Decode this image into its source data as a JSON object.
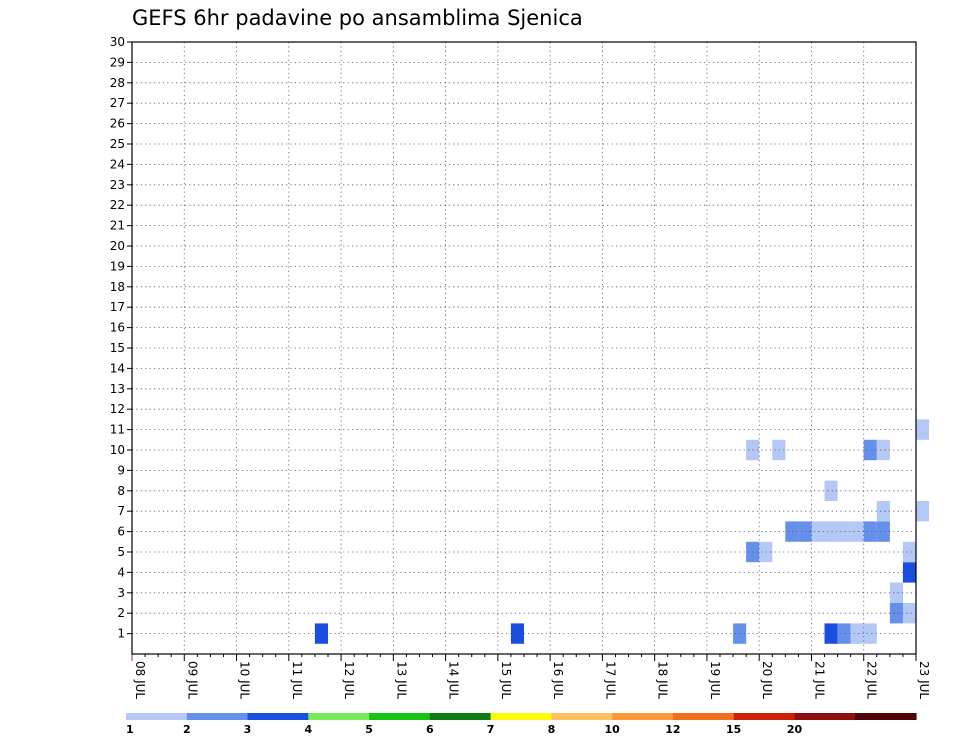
{
  "chart_data": {
    "type": "heatmap",
    "title": "GEFS 6hr padavine po ansamblima Sjenica",
    "x_tick_labels": [
      "08 JUL",
      "09 JUL",
      "10 JUL",
      "11 JUL",
      "12 JUL",
      "13 JUL",
      "14 JUL",
      "15 JUL",
      "16 JUL",
      "17 JUL",
      "18 JUL",
      "19 JUL",
      "20 JUL",
      "21 JUL",
      "22 JUL",
      "23 JUL"
    ],
    "x_steps_per_day": 4,
    "x_range_steps": [
      0,
      60
    ],
    "y_tick_labels": [
      "1",
      "2",
      "3",
      "4",
      "5",
      "6",
      "7",
      "8",
      "9",
      "10",
      "11",
      "12",
      "13",
      "14",
      "15",
      "16",
      "17",
      "18",
      "19",
      "20",
      "21",
      "22",
      "23",
      "24",
      "25",
      "26",
      "27",
      "28",
      "29",
      "30"
    ],
    "y_range_members": [
      1,
      30
    ],
    "grid": true,
    "legend_position": "bottom",
    "legend": {
      "labels": [
        "1",
        "2",
        "3",
        "4",
        "5",
        "6",
        "7",
        "8",
        "10",
        "12",
        "15",
        "20"
      ],
      "colors": [
        "#b4c8f5",
        "#6490ec",
        "#1a4ee0",
        "#78ea5a",
        "#17c414",
        "#0f7d0f",
        "#fcfc00",
        "#fcc060",
        "#fc9838",
        "#f0701a",
        "#cc2008",
        "#8c0e0e",
        "#4f0505"
      ]
    },
    "cells": [
      [
        14,
        1,
        3
      ],
      [
        29,
        1,
        3
      ],
      [
        46,
        1,
        2
      ],
      [
        56,
        1,
        1
      ],
      [
        53,
        1,
        3
      ],
      [
        54,
        1,
        2
      ],
      [
        55,
        1,
        1
      ],
      [
        58,
        2,
        2
      ],
      [
        59,
        2,
        1
      ],
      [
        58,
        3,
        1
      ],
      [
        61,
        3,
        1
      ],
      [
        64,
        3,
        2
      ],
      [
        59,
        4,
        3
      ],
      [
        59,
        5,
        1
      ],
      [
        63,
        5,
        1
      ],
      [
        64,
        5,
        5
      ],
      [
        47,
        5,
        2
      ],
      [
        48,
        5,
        1
      ],
      [
        50,
        6,
        2
      ],
      [
        51,
        6,
        2
      ],
      [
        56,
        6,
        2
      ],
      [
        57,
        6,
        2
      ],
      [
        52,
        6,
        1
      ],
      [
        53,
        6,
        1
      ],
      [
        54,
        6,
        1
      ],
      [
        55,
        6,
        1
      ],
      [
        57,
        7,
        1
      ],
      [
        60,
        7,
        1
      ],
      [
        61,
        7,
        1
      ],
      [
        63,
        7,
        1
      ],
      [
        64,
        7,
        4
      ],
      [
        53,
        8,
        1
      ],
      [
        63,
        8,
        1
      ],
      [
        56,
        10,
        2
      ],
      [
        57,
        10,
        1
      ],
      [
        49,
        10,
        1
      ],
      [
        47,
        10,
        1
      ],
      [
        60,
        11,
        1
      ],
      [
        64,
        11,
        3
      ],
      [
        65,
        11,
        1
      ],
      [
        61,
        13,
        3
      ],
      [
        62,
        13,
        3
      ],
      [
        66,
        13,
        2
      ],
      [
        64,
        14,
        2
      ],
      [
        65,
        14,
        1
      ],
      [
        64,
        17,
        1
      ],
      [
        65,
        17,
        1
      ],
      [
        67,
        17,
        1
      ],
      [
        68,
        17,
        1
      ],
      [
        69,
        17,
        2
      ],
      [
        70,
        17,
        1
      ],
      [
        71,
        18,
        1
      ],
      [
        72,
        18,
        1
      ],
      [
        74,
        18,
        1
      ],
      [
        75,
        18,
        1
      ],
      [
        76,
        18,
        2
      ],
      [
        77,
        18,
        1
      ],
      [
        78,
        18,
        2
      ],
      [
        79,
        18,
        1
      ],
      [
        80,
        18,
        1
      ],
      [
        81,
        18,
        1
      ],
      [
        82,
        18,
        1
      ],
      [
        83,
        18,
        1
      ],
      [
        84,
        18,
        2
      ],
      [
        85,
        18,
        1
      ],
      [
        86,
        18,
        3
      ],
      [
        87,
        18,
        2
      ],
      [
        88,
        18,
        1
      ],
      [
        89,
        18,
        1
      ]
    ]
  }
}
